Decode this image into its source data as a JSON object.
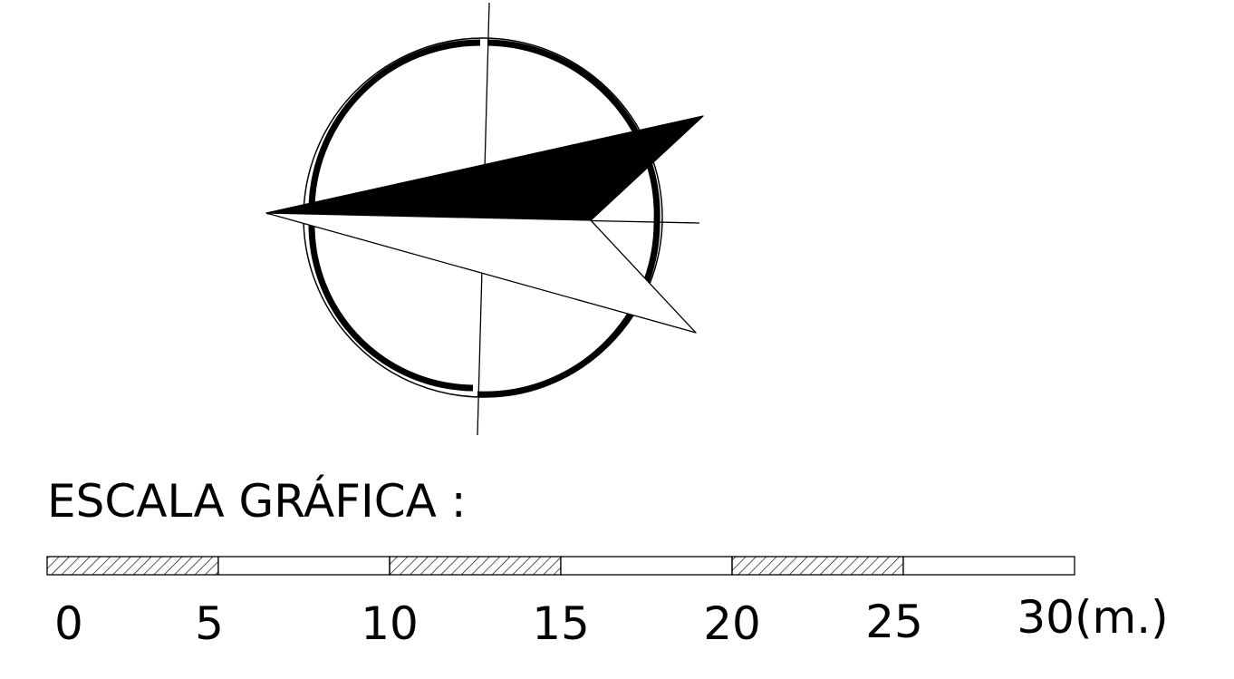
{
  "colors": {
    "ink": "#000000",
    "paper": "#ffffff"
  },
  "compass": {
    "icon": "north-arrow-compass"
  },
  "scale_bar": {
    "title": "ESCALA GRÁFICA :",
    "unit": "m",
    "total_length": 30,
    "segment_length": 5,
    "segments": [
      {
        "from": 0,
        "to": 5,
        "style": "hatched"
      },
      {
        "from": 5,
        "to": 10,
        "style": "blank"
      },
      {
        "from": 10,
        "to": 15,
        "style": "hatched"
      },
      {
        "from": 15,
        "to": 20,
        "style": "blank"
      },
      {
        "from": 20,
        "to": 25,
        "style": "hatched"
      },
      {
        "from": 25,
        "to": 30,
        "style": "blank"
      }
    ],
    "tick_labels": [
      "0",
      "5",
      "10",
      "15",
      "20",
      "25",
      "30(m.)"
    ]
  }
}
